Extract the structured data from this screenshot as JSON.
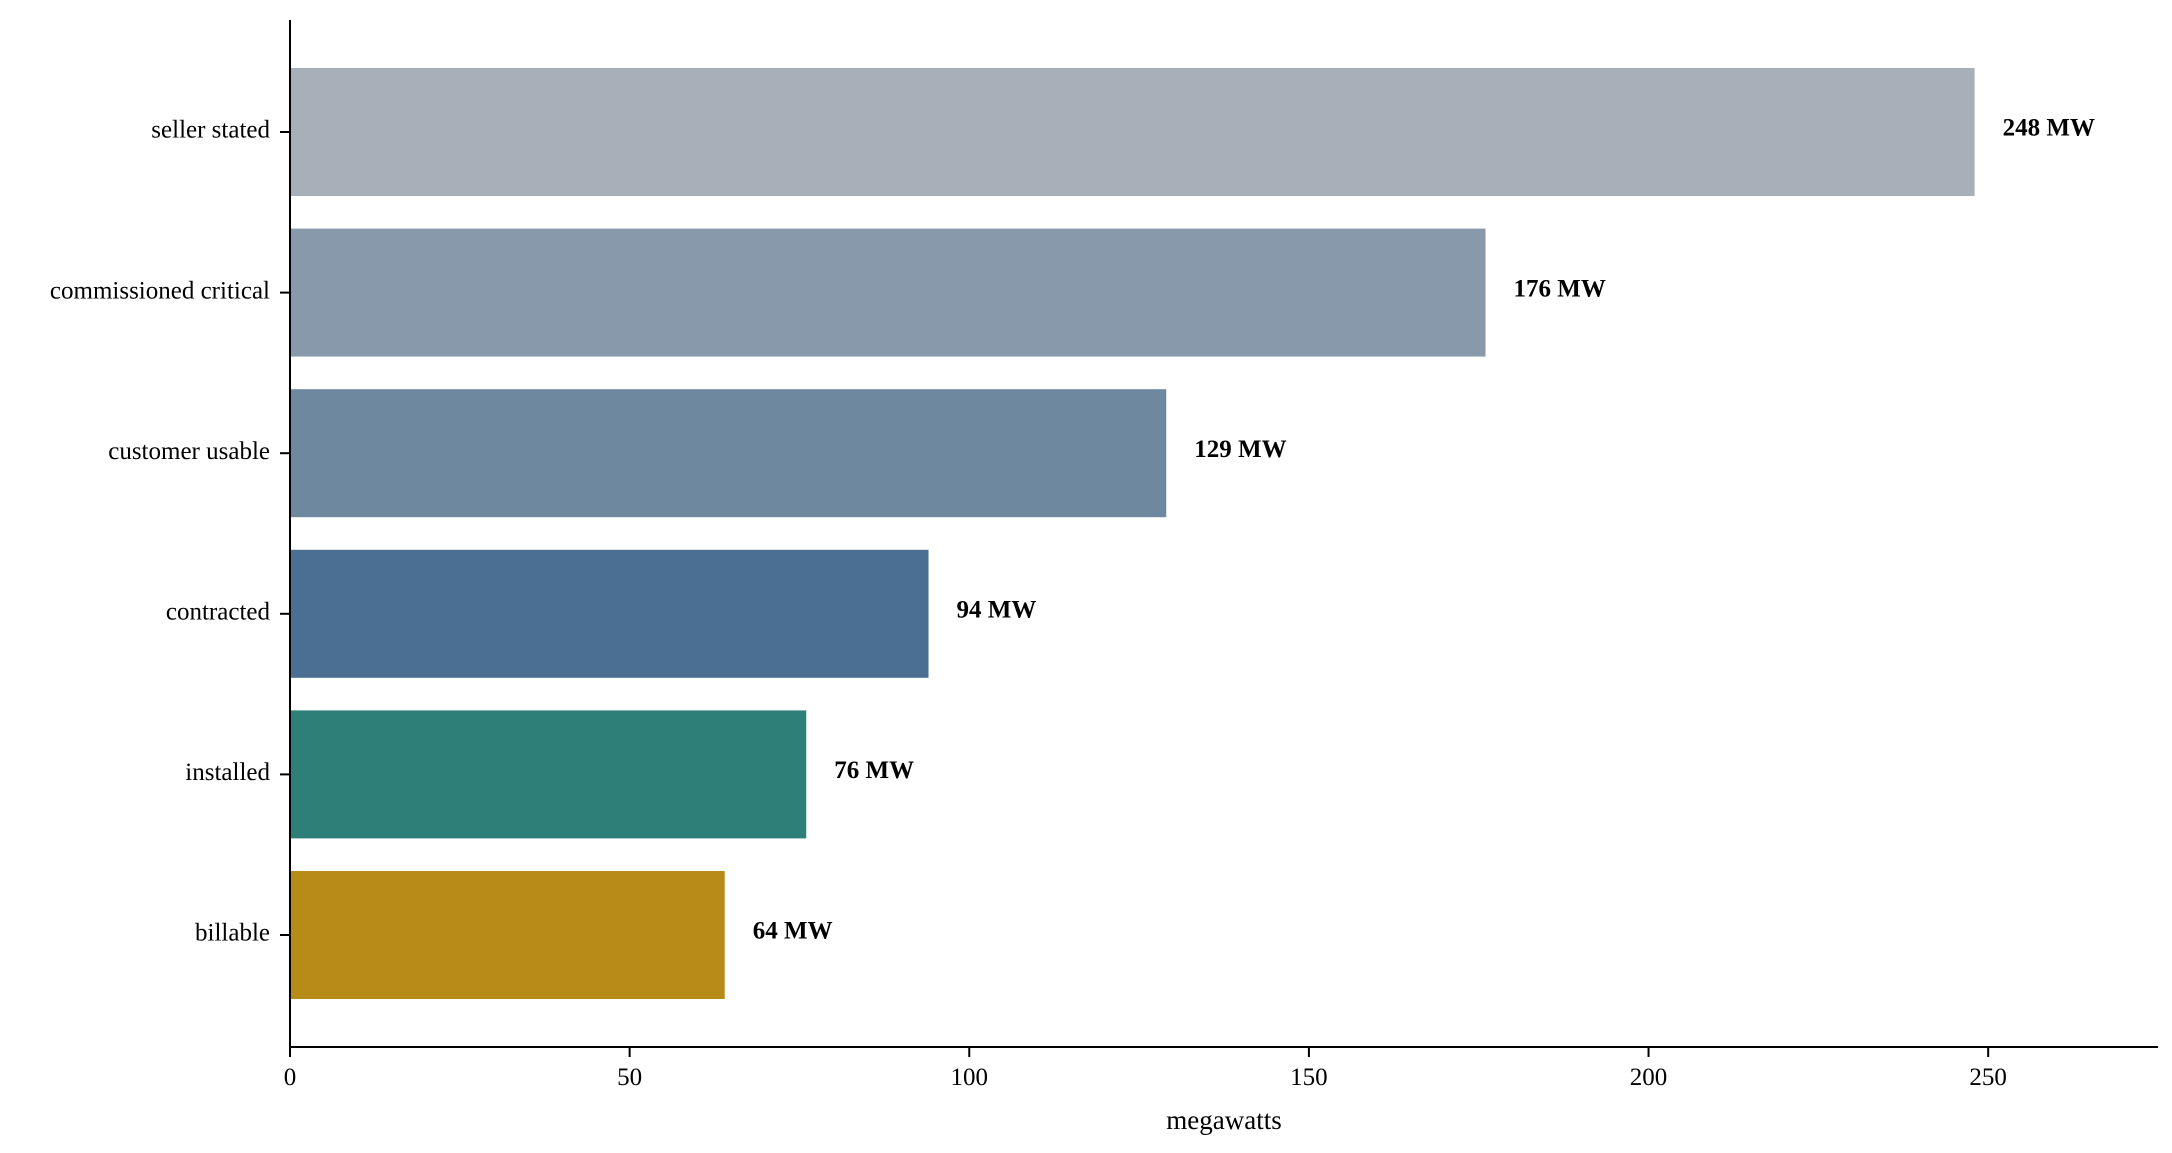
{
  "chart_data": {
    "type": "bar",
    "orientation": "horizontal",
    "categories": [
      "seller stated",
      "commissioned critical",
      "customer usable",
      "contracted",
      "installed",
      "billable"
    ],
    "values": [
      248,
      176,
      129,
      94,
      76,
      64
    ],
    "value_labels": [
      "248 MW",
      "176 MW",
      "129 MW",
      "94 MW",
      "76 MW",
      "64 MW"
    ],
    "colors": [
      "#a7b0b9",
      "#8899ac",
      "#6e88a0",
      "#4a6f92",
      "#2e7f78",
      "#b68b17"
    ],
    "title": "",
    "xlabel": "megawatts",
    "ylabel": "",
    "xlim": [
      0,
      275
    ],
    "xticks": [
      0,
      50,
      100,
      150,
      200,
      250
    ],
    "xtick_labels": [
      "0",
      "50",
      "100",
      "150",
      "200",
      "250"
    ],
    "grid": false,
    "legend": "none"
  }
}
